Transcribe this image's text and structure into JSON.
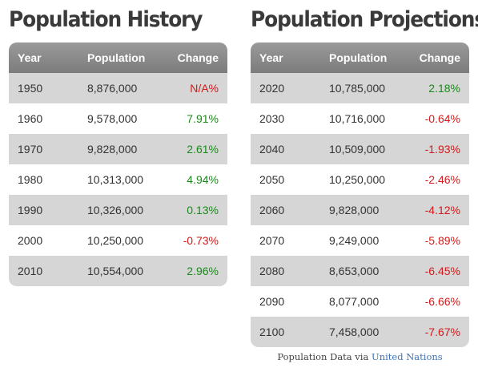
{
  "history": {
    "title": "Population History",
    "headers": {
      "year": "Year",
      "population": "Population",
      "change": "Change"
    },
    "rows": [
      {
        "year": "1950",
        "population": "8,876,000",
        "change": "N/A%",
        "trend": "neg"
      },
      {
        "year": "1960",
        "population": "9,578,000",
        "change": "7.91%",
        "trend": "pos"
      },
      {
        "year": "1970",
        "population": "9,828,000",
        "change": "2.61%",
        "trend": "pos"
      },
      {
        "year": "1980",
        "population": "10,313,000",
        "change": "4.94%",
        "trend": "pos"
      },
      {
        "year": "1990",
        "population": "10,326,000",
        "change": "0.13%",
        "trend": "pos"
      },
      {
        "year": "2000",
        "population": "10,250,000",
        "change": "-0.73%",
        "trend": "neg"
      },
      {
        "year": "2010",
        "population": "10,554,000",
        "change": "2.96%",
        "trend": "pos"
      }
    ]
  },
  "projections": {
    "title": "Population Projections",
    "headers": {
      "year": "Year",
      "population": "Population",
      "change": "Change"
    },
    "rows": [
      {
        "year": "2020",
        "population": "10,785,000",
        "change": "2.18%",
        "trend": "pos"
      },
      {
        "year": "2030",
        "population": "10,716,000",
        "change": "-0.64%",
        "trend": "neg"
      },
      {
        "year": "2040",
        "population": "10,509,000",
        "change": "-1.93%",
        "trend": "neg"
      },
      {
        "year": "2050",
        "population": "10,250,000",
        "change": "-2.46%",
        "trend": "neg"
      },
      {
        "year": "2060",
        "population": "9,828,000",
        "change": "-4.12%",
        "trend": "neg"
      },
      {
        "year": "2070",
        "population": "9,249,000",
        "change": "-5.89%",
        "trend": "neg"
      },
      {
        "year": "2080",
        "population": "8,653,000",
        "change": "-6.45%",
        "trend": "neg"
      },
      {
        "year": "2090",
        "population": "8,077,000",
        "change": "-6.66%",
        "trend": "neg"
      },
      {
        "year": "2100",
        "population": "7,458,000",
        "change": "-7.67%",
        "trend": "neg"
      }
    ]
  },
  "colors": {
    "positive": "#1a8a1a",
    "negative": "#d41a1a",
    "header_bg": "#8a8a8a",
    "row_alt_bg": "#d6d6d6",
    "link": "#3b73b9"
  },
  "source": {
    "prefix": "Population Data via",
    "link_text": "United Nations"
  }
}
